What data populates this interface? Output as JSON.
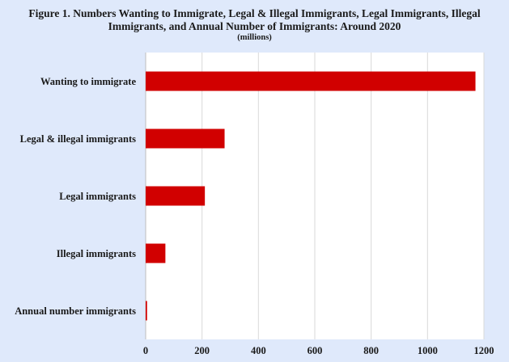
{
  "chart_data": {
    "type": "bar",
    "orientation": "horizontal",
    "title": "Figure 1. Numbers Wanting to Immigrate, Legal & Illegal Immigrants, Legal Immigrants, Illegal Immigrants, and Annual Number of Immigrants: Around 2020",
    "subtitle": "(millions)",
    "categories": [
      "Wanting to immigrate",
      "Legal & illegal immigrants",
      "Legal immigrants",
      "Illegal immigrants",
      "Annual number immigrants"
    ],
    "values": [
      1170,
      280,
      210,
      70,
      5
    ],
    "xlim": [
      0,
      1200
    ],
    "xticks": [
      "0",
      "200",
      "400",
      "600",
      "800",
      "1000",
      "1200"
    ],
    "grid": true,
    "bar_color": "#d10000",
    "background_color": "#dfe9fb"
  }
}
